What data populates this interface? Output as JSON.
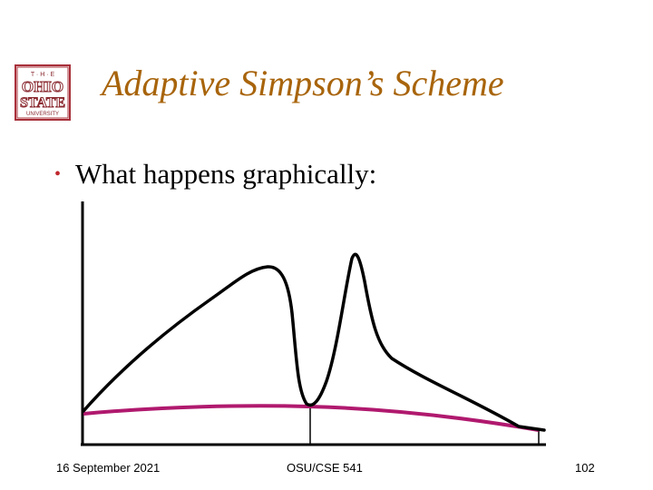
{
  "slide": {
    "title": "Adaptive Simpson’s Scheme",
    "bullet": "What happens graphically:",
    "colors": {
      "title": "#a8640b",
      "bullet": "#c0282e",
      "rule_start": "#1c1c7a",
      "rule_end": "#f2b233",
      "function_curve": "#000000",
      "parabola": "#b0196e"
    }
  },
  "logo": {
    "line1": "T · H · E",
    "line2": "OHIO",
    "line3": "STATE",
    "line4": "UNIVERSITY"
  },
  "footer": {
    "date": "16 September 2021",
    "course": "OSU/CSE 541",
    "page": "102"
  }
}
